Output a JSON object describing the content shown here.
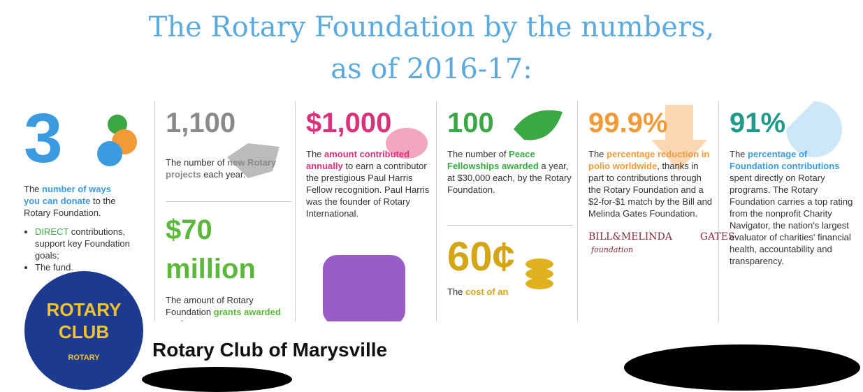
{
  "cover": {
    "title": [
      "The Rotary Foundation by the numbers,",
      "as of 2016-17:"
    ],
    "columns": [
      {
        "sections": [
          {
            "number": "3",
            "number_color": "#3b9be0",
            "text": [
              {
                "text": "The "
              },
              {
                "text": "number of ways you can donate",
                "color": "#3b9be0"
              },
              {
                "text": " to the Rotary Foundation."
              }
            ],
            "bullets": [
              [
                {
                  "text": "DIRECT",
                  "color": "#3aa845"
                },
                {
                  "text": " contributions, support key Foundation goals;"
                }
              ],
              [
                {
                  "text": "The fund,"
                }
              ]
            ]
          }
        ]
      },
      {
        "sections": [
          {
            "number": "1,100",
            "number_color": "#8a8a8a",
            "text": [
              {
                "text": "The number of "
              },
              {
                "text": "new Rotary projects",
                "color": "#8a8a8a"
              },
              {
                "text": " each year."
              }
            ]
          },
          {
            "number": "$70 million",
            "number_color": "#5cb83c",
            "text": [
              {
                "text": "The amount of Rotary Foundation "
              },
              {
                "text": "grants awarded each year",
                "color": "#5cb83c"
              },
              {
                "text": "."
              }
            ]
          }
        ]
      },
      {
        "sections": [
          {
            "number": "$1,000",
            "number_color": "#d9327a",
            "text": [
              {
                "text": "The "
              },
              {
                "text": "amount contributed annually",
                "color": "#d9327a"
              },
              {
                "text": " to earn a contributor the prestigious Paul Harris Fellow recognition. Paul Harris was the founder of Rotary International."
              }
            ]
          }
        ]
      },
      {
        "sections": [
          {
            "number": "100",
            "number_color": "#3aa845",
            "text": [
              {
                "text": "The number of "
              },
              {
                "text": "Peace Fellowships awarded",
                "color": "#3aa845"
              },
              {
                "text": " a year, at $30,000 each, by the Rotary Foundation."
              }
            ]
          },
          {
            "number": "60¢",
            "number_color": "#d4a514",
            "text": [
              {
                "text": "The "
              },
              {
                "text": "cost of an",
                "color": "#d4a514"
              }
            ]
          }
        ]
      },
      {
        "sections": [
          {
            "number": "99.9%",
            "number_color": "#f29a38",
            "text": [
              {
                "text": "The "
              },
              {
                "text": "percentage reduction in polio worldwide",
                "color": "#f29a38"
              },
              {
                "text": ", thanks in part to contributions through the Rotary Foundation and a $2-for-$1 match by the Bill and Melinda Gates Foundation."
              }
            ],
            "logo": [
              "BILL&MELINDA",
              "GATES",
              "foundation"
            ]
          }
        ]
      },
      {
        "sections": [
          {
            "number": "91%",
            "number_color": "#1f9a8a",
            "text": [
              {
                "text": "The "
              },
              {
                "text": "percentage of Foundation contributions",
                "color": "#3b9be0"
              },
              {
                "text": " spent directly on Rotary programs. The Rotary Foundation carries a top rating from the nonprofit Charity Navigator, the nation's largest evaluator of charities' financial health, accountability and transparency."
              }
            ]
          }
        ]
      }
    ]
  },
  "profile": {
    "avatar": [
      "ROTARY",
      "CLUB",
      "ROTARY"
    ],
    "name": "Rotary Club of Marysville"
  }
}
